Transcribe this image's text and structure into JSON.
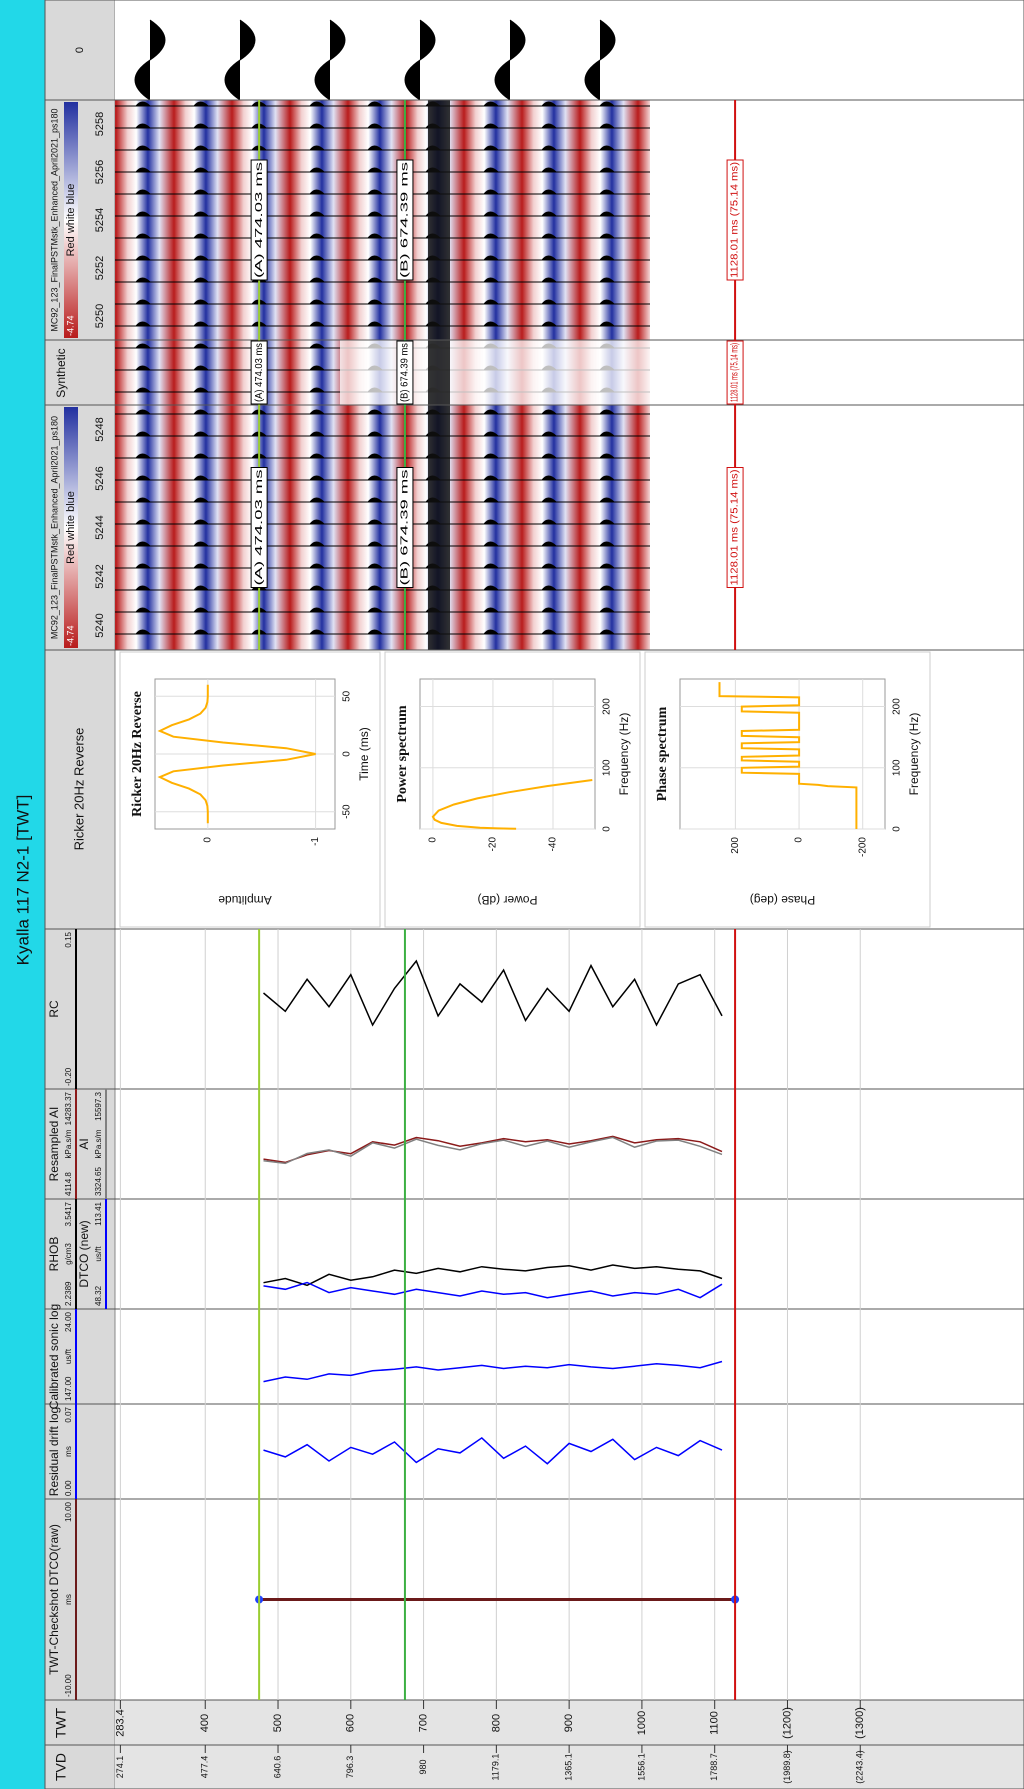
{
  "title": "Kyalla 117 N2-1 [TWT]",
  "headers": {
    "tvd": "TVD",
    "twt": "TWT",
    "wavelet": "Ricker 20Hz Reverse",
    "synthetic": "Synthetic"
  },
  "twt_axis": {
    "lim": [
      276,
      1525
    ],
    "ticks": [
      283.4,
      400,
      500,
      600,
      700,
      800,
      900,
      1000,
      1100,
      {
        "value": 1200,
        "label": "(1200)"
      },
      {
        "value": 1300,
        "label": "(1300)"
      }
    ]
  },
  "tvd_labels": [
    274.1,
    477.4,
    640.6,
    796.3,
    980,
    1179.1,
    1365.1,
    1556.1,
    1788.7,
    {
      "value": 1989.8,
      "label": "(1989.8)"
    },
    {
      "value": 2243.4,
      "label": "(2243.4)"
    }
  ],
  "checkshot": {
    "name": "TWT-Checkshot DTCO(raw)",
    "unit": "ms",
    "scale": [
      {
        "value": -10,
        "label": "-10.00"
      },
      {
        "value": 10,
        "label": "10.00"
      }
    ],
    "color": "#6b1a1a",
    "twt": [
      474,
      1128
    ],
    "values": [
      0,
      0
    ]
  },
  "log_twt": [
    480,
    510,
    540,
    570,
    600,
    630,
    660,
    690,
    720,
    750,
    780,
    810,
    840,
    870,
    900,
    930,
    960,
    990,
    1020,
    1050,
    1080,
    1110
  ],
  "logs": [
    {
      "name": "Residual drift log",
      "unit": "ms",
      "scale": [
        {
          "value": 0,
          "label": "0.00"
        },
        {
          "value": 0.07,
          "label": "0.07"
        }
      ],
      "color": "#0000ff",
      "values": [
        0.036,
        0.031,
        0.04,
        0.028,
        0.038,
        0.033,
        0.042,
        0.027,
        0.037,
        0.034,
        0.045,
        0.03,
        0.039,
        0.026,
        0.041,
        0.035,
        0.044,
        0.029,
        0.038,
        0.032,
        0.043,
        0.036
      ]
    },
    {
      "name": "Calibrated sonic log",
      "unit": "us/ft",
      "scale": [
        {
          "value": 147,
          "label": "147.00"
        },
        {
          "value": 24,
          "label": "24.00"
        }
      ],
      "color": "#0000ff",
      "values": [
        118,
        112,
        115,
        108,
        110,
        104,
        102,
        99,
        103,
        100,
        97,
        101,
        98,
        100,
        96,
        99,
        101,
        98,
        95,
        97,
        100,
        92
      ]
    },
    {
      "name": "RHOB",
      "unit": "g/cm3",
      "scale": [
        2.2389,
        3.5417
      ],
      "color": "#000000",
      "values": [
        2.55,
        2.6,
        2.52,
        2.65,
        2.58,
        2.62,
        2.7,
        2.66,
        2.72,
        2.68,
        2.74,
        2.71,
        2.69,
        2.73,
        2.75,
        2.7,
        2.76,
        2.72,
        2.74,
        2.71,
        2.69,
        2.6
      ]
    },
    {
      "name": "DTCO (new)",
      "unit": "us/ft",
      "scale": [
        48.32,
        113.41
      ],
      "color": "#0000ff",
      "values": [
        62,
        60,
        64,
        58,
        61,
        59,
        57,
        60,
        58,
        56,
        59,
        57,
        58,
        55,
        57,
        59,
        56,
        58,
        57,
        60,
        55,
        63
      ]
    },
    {
      "name": "Resampled AI",
      "unit": "kPa.s/m",
      "scale": [
        4114.8,
        14283.37
      ],
      "color": "#8b1a1a",
      "values": [
        7800,
        7500,
        8200,
        8600,
        8300,
        9400,
        9100,
        9800,
        9500,
        9000,
        9300,
        9700,
        9400,
        9600,
        9200,
        9500,
        9900,
        9300,
        9600,
        9700,
        9400,
        8500
      ]
    },
    {
      "name": "AI",
      "unit": "kPa.s/m",
      "scale": [
        3324.65,
        15597.3
      ],
      "color": "#808080",
      "values": [
        7600,
        7300,
        8400,
        8800,
        8100,
        9600,
        9000,
        10000,
        9300,
        8800,
        9500,
        9900,
        9200,
        9800,
        9100,
        9700,
        10200,
        9100,
        9800,
        9900,
        9200,
        8300
      ]
    },
    {
      "name": "RC",
      "unit": "",
      "scale": [
        {
          "value": -0.2,
          "label": "-0.20"
        },
        0.15
      ],
      "color": "#000000",
      "values": [
        0.01,
        -0.03,
        0.04,
        -0.02,
        0.05,
        -0.06,
        0.02,
        0.08,
        -0.04,
        0.03,
        -0.01,
        0.06,
        -0.05,
        0.02,
        -0.03,
        0.07,
        -0.02,
        0.04,
        -0.06,
        0.03,
        0.05,
        -0.04
      ]
    }
  ],
  "markers": [
    {
      "label": "(A) 474.03 ms",
      "twt": 474.03,
      "color": "#9acd32"
    },
    {
      "label": "(B) 674.39 ms",
      "twt": 674.39,
      "color": "#3cb043"
    },
    {
      "label": "1128.01 ms (75.14 ms)",
      "twt": 1128.01,
      "color": "#d01010"
    }
  ],
  "wavelet_panels": [
    {
      "title": "Ricker 20Hz Reverse",
      "xlabel": "Time (ms)",
      "ylabel": "Amplitude",
      "xlim": [
        -65,
        65
      ],
      "ylim": [
        -1.18,
        0.49
      ],
      "xticks": [
        -50,
        0,
        50
      ],
      "yticks": [
        0,
        -1
      ],
      "x": [
        -60,
        -55,
        -50,
        -45,
        -40,
        -35,
        -30,
        -25,
        -20,
        -15,
        -10,
        -5,
        0,
        5,
        10,
        15,
        20,
        25,
        30,
        35,
        40,
        45,
        50,
        55,
        60
      ],
      "values": [
        0,
        0,
        0,
        0.004,
        0.021,
        0.069,
        0.175,
        0.334,
        0.445,
        0.319,
        -0.142,
        -0.727,
        -1,
        -0.727,
        -0.142,
        0.319,
        0.445,
        0.334,
        0.175,
        0.069,
        0.021,
        0.004,
        0,
        0,
        0
      ]
    },
    {
      "title": "Power spectrum",
      "xlabel": "Frequency (Hz)",
      "ylabel": "Power (dB)",
      "xlim": [
        0,
        245
      ],
      "ylim": [
        -54,
        4.3
      ],
      "xticks": [
        0,
        100,
        200
      ],
      "yticks": [
        0,
        -20,
        -40
      ],
      "x": [
        0.5,
        1,
        2,
        5,
        10,
        15,
        20,
        30,
        40,
        50,
        60,
        70,
        80
      ],
      "values": [
        -27.7,
        -21.7,
        -15.7,
        -8.0,
        -2.8,
        -0.6,
        0,
        -1.9,
        -7.0,
        -14.8,
        -25.2,
        -38.0,
        -53.1
      ]
    },
    {
      "title": "Phase spectrum",
      "xlabel": "Frequency (Hz)",
      "ylabel": "Phase (deg)",
      "xlim": [
        0,
        245
      ],
      "ylim": [
        -270,
        374
      ],
      "xticks": [
        0,
        100,
        200
      ],
      "yticks": [
        200,
        0,
        -200
      ],
      "x": [
        0,
        68,
        70,
        72,
        74,
        90,
        92,
        100,
        102,
        110,
        112,
        118,
        120,
        130,
        132,
        140,
        142,
        150,
        152,
        160,
        162,
        190,
        192,
        200,
        202,
        215,
        217,
        240
      ],
      "values": [
        -180,
        -180,
        -90,
        -60,
        0,
        0,
        180,
        180,
        0,
        0,
        180,
        180,
        0,
        0,
        180,
        180,
        0,
        0,
        180,
        180,
        0,
        0,
        180,
        180,
        0,
        0,
        250,
        250
      ]
    }
  ],
  "seismic_panels": [
    {
      "name": "MC92_123_FinalPSTMstk_Enhanced_April2021_ps180",
      "colormap": "Red white blue",
      "scale_min": -4.74,
      "traces": [
        5240,
        5242,
        5244,
        5246,
        5248
      ]
    },
    {
      "name": "MC92_123_FinalPSTMstk_Enhanced_April2021_ps180",
      "colormap": "Red white blue",
      "scale_min": -4.74,
      "traces": [
        5250,
        5252,
        5254,
        5256,
        5258
      ]
    }
  ],
  "reference_trace": 0
}
